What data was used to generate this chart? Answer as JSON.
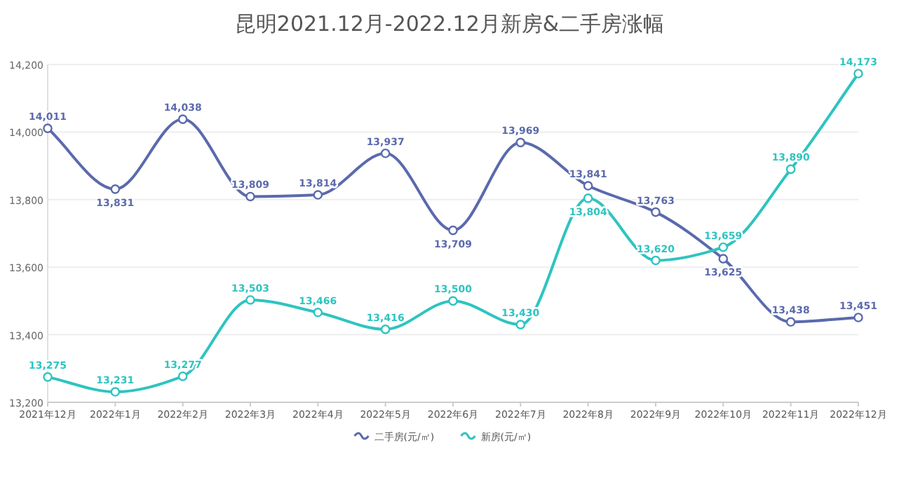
{
  "chart_data": {
    "type": "line",
    "title": "昆明2021.12月-2022.12月新房&二手房涨幅",
    "categories": [
      "2021年12月",
      "2022年1月",
      "2022年2月",
      "2022年3月",
      "2022年4月",
      "2022年5月",
      "2022年6月",
      "2022年7月",
      "2022年8月",
      "2022年9月",
      "2022年10月",
      "2022年11月",
      "2022年12月"
    ],
    "series": [
      {
        "name": "二手房(元/㎡)",
        "color": "#5b6aad",
        "values": [
          14011,
          13831,
          14038,
          13809,
          13814,
          13937,
          13709,
          13969,
          13841,
          13763,
          13625,
          13438,
          13451
        ],
        "value_labels": [
          "14,011",
          "13,831",
          "14,038",
          "13,809",
          "13,814",
          "13,937",
          "13,709",
          "13,969",
          "13,841",
          "13,763",
          "13,625",
          "13,438",
          "13,451"
        ]
      },
      {
        "name": "新房(元/㎡)",
        "color": "#2ec4c0",
        "values": [
          13275,
          13231,
          13277,
          13503,
          13466,
          13416,
          13500,
          13430,
          13804,
          13620,
          13659,
          13890,
          14173
        ],
        "value_labels": [
          "13,275",
          "13,231",
          "13,277",
          "13,503",
          "13,466",
          "13,416",
          "13,500",
          "13,430",
          "13,804",
          "13,620",
          "13,659",
          "13,890",
          "14,173"
        ]
      }
    ],
    "ylim": [
      13200,
      14200
    ],
    "yticks": [
      {
        "value": 13200,
        "label": "13,200"
      },
      {
        "value": 13400,
        "label": "13,400"
      },
      {
        "value": 13600,
        "label": "13,600"
      },
      {
        "value": 13800,
        "label": "13,800"
      },
      {
        "value": 14000,
        "label": "14,000"
      },
      {
        "value": 14200,
        "label": "14,200"
      }
    ],
    "grid": "y",
    "legend": "bottom",
    "marker": "circle"
  }
}
